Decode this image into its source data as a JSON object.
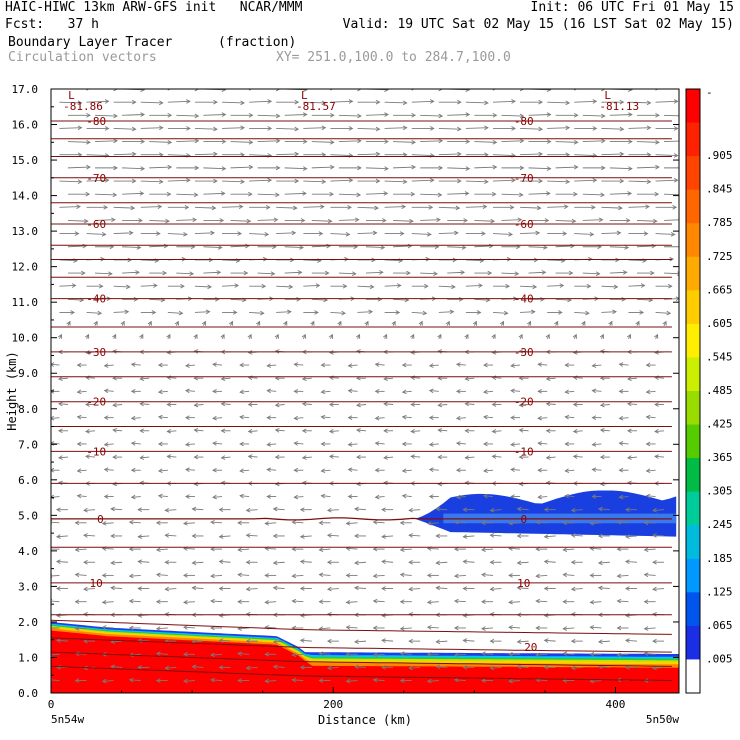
{
  "header": {
    "line1_left": "HAIC-HIWC 13km ARW-GFS init   NCAR/MMM",
    "line1_right": "Init: 06 UTC Fri 01 May 15",
    "line2_left": "Fcst:   37 h",
    "line2_right": "Valid: 19 UTC Sat 02 May 15 (16 LST Sat 02 May 15)",
    "field_name": "Boundary Layer Tracer",
    "field_units": "(fraction)",
    "vector_name": "Circulation vectors",
    "cross_section": "XY= 251.0,100.0 to 284.7,100.0"
  },
  "chart_data": {
    "type": "heatmap",
    "xlabel": "Distance (km)",
    "ylabel": "Height (km)",
    "xlim": [
      0,
      445
    ],
    "ylim": [
      0,
      17
    ],
    "x_ticks": [
      0,
      200,
      400
    ],
    "y_ticks": [
      "0.0",
      "1.0",
      "2.0",
      "3.0",
      "4.0",
      "5.0",
      "6.0",
      "7.0",
      "8.0",
      "9.0",
      "10.0",
      "11.0",
      "12.0",
      "13.0",
      "14.0",
      "15.0",
      "16.0",
      "17.0"
    ],
    "x_endpoint_labels": {
      "left": "5n54w",
      "right": "5n50w"
    },
    "colorbar": {
      "labels": [
        "-",
        ".905",
        ".845",
        ".785",
        ".725",
        ".665",
        ".605",
        ".545",
        ".485",
        ".425",
        ".365",
        ".305",
        ".245",
        ".185",
        ".125",
        ".065",
        ".005"
      ],
      "colors": [
        "#ff0000",
        "#ff2200",
        "#ff4400",
        "#ff6600",
        "#ff8800",
        "#ffaa00",
        "#ffcc00",
        "#ffee00",
        "#ccee00",
        "#99dd00",
        "#55cc00",
        "#00bb44",
        "#00cc99",
        "#00bbdd",
        "#0099ff",
        "#0055ee",
        "#1a2ee6",
        "#ffffff"
      ]
    },
    "tracer_regions": [
      {
        "name": "boundary layer",
        "color": "#ff0000",
        "x_range": [
          0,
          445
        ],
        "top_km": [
          2.0,
          1.0
        ]
      },
      {
        "name": "mid-level plume",
        "color": "#1a3fe0",
        "x_range": [
          258,
          445
        ],
        "z_range": [
          4.4,
          5.7
        ]
      }
    ],
    "temperature_contours": [
      {
        "value": "0",
        "height_km": 4.9
      },
      {
        "value": "-10",
        "height_km": 6.8
      },
      {
        "value": "-20",
        "height_km": 8.2
      },
      {
        "value": "-30",
        "height_km": 9.6
      },
      {
        "value": "-40",
        "height_km": 11.1
      },
      {
        "value": "-60",
        "height_km": 13.2
      },
      {
        "value": "-70",
        "height_km": 14.5
      },
      {
        "value": "-80",
        "height_km": 16.1
      },
      {
        "value": "10",
        "height_km": 3.1
      },
      {
        "value": "20",
        "height_km": 1.0
      }
    ],
    "minima_labels": [
      {
        "mark": "L",
        "value": "-81.86",
        "x_km": 10
      },
      {
        "mark": "L",
        "value": "-81.57",
        "x_km": 175
      },
      {
        "mark": "L",
        "value": "-81.13",
        "x_km": 390
      }
    ],
    "vectors": "Circulation vectors"
  }
}
